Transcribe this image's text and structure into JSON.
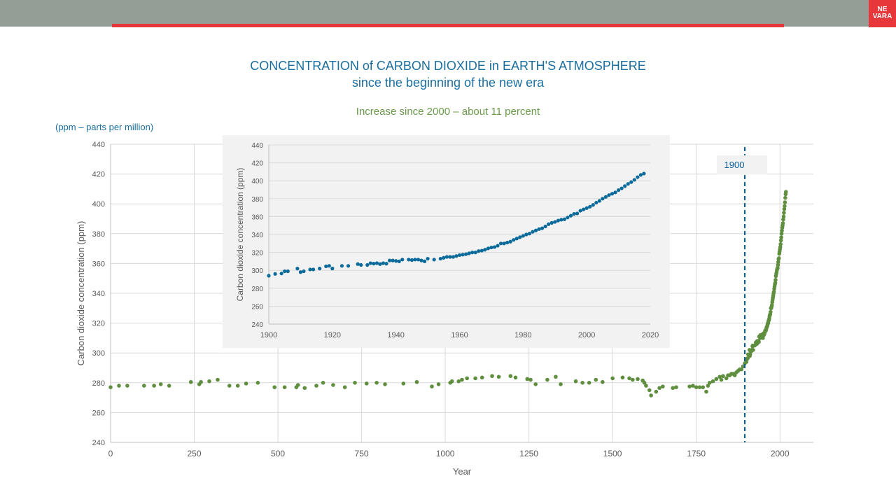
{
  "header": {
    "logo_line1": "NE",
    "logo_line2": "VARA",
    "brand_color": "#e8373a"
  },
  "title_line1": "CONCENTRATION of CARBON DIOXIDE in EARTH'S ATMOSPHERE",
  "title_line2": "since the beginning of the new era",
  "note": "Increase  since 2000 – about 11 percent",
  "units_note": "(ppm – parts per million)",
  "chart_data": [
    {
      "type": "scatter",
      "name": "main",
      "xlabel": "Year",
      "ylabel": "Carbon dioxide concentration  (ppm)",
      "xlim": [
        0,
        2100
      ],
      "ylim": [
        240,
        440
      ],
      "xticks": [
        0,
        250,
        500,
        750,
        1000,
        1250,
        1500,
        1750,
        2000
      ],
      "yticks": [
        240,
        260,
        280,
        300,
        320,
        340,
        360,
        380,
        400,
        420,
        440
      ],
      "grid": true,
      "color": "#5f8f3e",
      "annotation": {
        "label": "1900",
        "x": 1895,
        "color": "#0a5f9a"
      },
      "points": [
        [
          0,
          277
        ],
        [
          25,
          278
        ],
        [
          50,
          278
        ],
        [
          100,
          278
        ],
        [
          130,
          278
        ],
        [
          150,
          279
        ],
        [
          175,
          278
        ],
        [
          240,
          280.5
        ],
        [
          265,
          279
        ],
        [
          270,
          280.5
        ],
        [
          295,
          281
        ],
        [
          320,
          282
        ],
        [
          355,
          278
        ],
        [
          380,
          278
        ],
        [
          405,
          279.5
        ],
        [
          440,
          280
        ],
        [
          490,
          277
        ],
        [
          520,
          277
        ],
        [
          555,
          277
        ],
        [
          560,
          278.5
        ],
        [
          580,
          276.5
        ],
        [
          615,
          278
        ],
        [
          635,
          280
        ],
        [
          665,
          278.5
        ],
        [
          700,
          277
        ],
        [
          730,
          280
        ],
        [
          765,
          279.5
        ],
        [
          795,
          280
        ],
        [
          820,
          279
        ],
        [
          875,
          279.5
        ],
        [
          915,
          280.5
        ],
        [
          960,
          277.5
        ],
        [
          980,
          279
        ],
        [
          1015,
          280
        ],
        [
          1020,
          281
        ],
        [
          1040,
          281
        ],
        [
          1050,
          282
        ],
        [
          1065,
          283
        ],
        [
          1090,
          283
        ],
        [
          1110,
          283.5
        ],
        [
          1140,
          284.5
        ],
        [
          1160,
          284
        ],
        [
          1195,
          284.5
        ],
        [
          1210,
          283.5
        ],
        [
          1245,
          282.5
        ],
        [
          1255,
          282
        ],
        [
          1270,
          279
        ],
        [
          1305,
          282
        ],
        [
          1330,
          284
        ],
        [
          1345,
          279
        ],
        [
          1390,
          281
        ],
        [
          1410,
          280
        ],
        [
          1430,
          280
        ],
        [
          1450,
          282
        ],
        [
          1470,
          280.5
        ],
        [
          1500,
          283
        ],
        [
          1530,
          283.5
        ],
        [
          1550,
          283
        ],
        [
          1560,
          282
        ],
        [
          1575,
          282.5
        ],
        [
          1590,
          281.5
        ],
        [
          1595,
          280
        ],
        [
          1600,
          278
        ],
        [
          1610,
          275
        ],
        [
          1615,
          271.5
        ],
        [
          1630,
          274
        ],
        [
          1640,
          276.5
        ],
        [
          1650,
          277.5
        ],
        [
          1680,
          276.5
        ],
        [
          1690,
          277
        ],
        [
          1730,
          277.5
        ],
        [
          1740,
          278
        ],
        [
          1750,
          277
        ],
        [
          1760,
          277
        ],
        [
          1770,
          277
        ],
        [
          1780,
          274
        ],
        [
          1785,
          278
        ],
        [
          1790,
          280
        ],
        [
          1800,
          281
        ],
        [
          1810,
          282.5
        ],
        [
          1820,
          284
        ],
        [
          1825,
          282
        ],
        [
          1830,
          284.5
        ],
        [
          1840,
          283
        ],
        [
          1845,
          285
        ],
        [
          1850,
          285
        ],
        [
          1855,
          286
        ],
        [
          1860,
          286
        ],
        [
          1865,
          285
        ],
        [
          1870,
          287
        ],
        [
          1875,
          288
        ],
        [
          1880,
          289
        ],
        [
          1885,
          289
        ],
        [
          1890,
          291
        ],
        [
          1895,
          293
        ]
      ]
    },
    {
      "type": "scatter",
      "name": "inset",
      "xlabel": "",
      "ylabel": "Carbon dioxide concentration (ppm)",
      "xlim": [
        1900,
        2020
      ],
      "ylim": [
        240,
        440
      ],
      "xticks": [
        1900,
        1920,
        1940,
        1960,
        1980,
        2000,
        2020
      ],
      "yticks": [
        240,
        260,
        280,
        300,
        320,
        340,
        360,
        380,
        400,
        420,
        440
      ],
      "grid": true,
      "color": "#0a6a9a",
      "points": [
        [
          1900,
          294
        ],
        [
          1902,
          296
        ],
        [
          1904,
          296.5
        ],
        [
          1905,
          299
        ],
        [
          1906,
          299
        ],
        [
          1909,
          302
        ],
        [
          1910,
          298
        ],
        [
          1911,
          299
        ],
        [
          1913,
          301
        ],
        [
          1914,
          301
        ],
        [
          1916,
          302
        ],
        [
          1918,
          304.5
        ],
        [
          1919,
          305
        ],
        [
          1920,
          302
        ],
        [
          1923,
          305
        ],
        [
          1925,
          305
        ],
        [
          1928,
          307
        ],
        [
          1929,
          306
        ],
        [
          1931,
          306
        ],
        [
          1932,
          308
        ],
        [
          1933,
          307.5
        ],
        [
          1934,
          308
        ],
        [
          1935,
          307
        ],
        [
          1936,
          308
        ],
        [
          1937,
          307.5
        ],
        [
          1938,
          311
        ],
        [
          1939,
          311
        ],
        [
          1940,
          310.5
        ],
        [
          1941,
          310
        ],
        [
          1942,
          312
        ],
        [
          1944,
          312
        ],
        [
          1945,
          311.5
        ],
        [
          1946,
          312
        ],
        [
          1947,
          312
        ],
        [
          1948,
          311
        ],
        [
          1949,
          310
        ],
        [
          1950,
          313
        ],
        [
          1952,
          312
        ],
        [
          1954,
          313
        ],
        [
          1955,
          314
        ],
        [
          1956,
          315
        ],
        [
          1957,
          315
        ],
        [
          1958,
          315
        ],
        [
          1959,
          316
        ],
        [
          1960,
          317
        ],
        [
          1961,
          317.5
        ],
        [
          1962,
          318
        ],
        [
          1963,
          319
        ],
        [
          1964,
          320
        ],
        [
          1965,
          320
        ],
        [
          1966,
          321.5
        ],
        [
          1967,
          322
        ],
        [
          1968,
          323
        ],
        [
          1969,
          324.5
        ],
        [
          1970,
          325.5
        ],
        [
          1971,
          326
        ],
        [
          1972,
          327.5
        ],
        [
          1973,
          330
        ],
        [
          1974,
          330
        ],
        [
          1975,
          331
        ],
        [
          1976,
          332
        ],
        [
          1977,
          334
        ],
        [
          1978,
          335.5
        ],
        [
          1979,
          337
        ],
        [
          1980,
          338.5
        ],
        [
          1981,
          340
        ],
        [
          1982,
          341
        ],
        [
          1983,
          343
        ],
        [
          1984,
          344.5
        ],
        [
          1985,
          346
        ],
        [
          1986,
          347
        ],
        [
          1987,
          349
        ],
        [
          1988,
          351.5
        ],
        [
          1989,
          353
        ],
        [
          1990,
          354
        ],
        [
          1991,
          355.5
        ],
        [
          1992,
          356.5
        ],
        [
          1993,
          357
        ],
        [
          1994,
          359
        ],
        [
          1995,
          361
        ],
        [
          1996,
          363
        ],
        [
          1997,
          363.5
        ],
        [
          1998,
          366.5
        ],
        [
          1999,
          368
        ],
        [
          2000,
          369.5
        ],
        [
          2001,
          371
        ],
        [
          2002,
          373
        ],
        [
          2003,
          375.5
        ],
        [
          2004,
          377.5
        ],
        [
          2005,
          380
        ],
        [
          2006,
          382
        ],
        [
          2007,
          384
        ],
        [
          2008,
          385.5
        ],
        [
          2009,
          387
        ],
        [
          2010,
          389.5
        ],
        [
          2011,
          391.5
        ],
        [
          2012,
          394
        ],
        [
          2013,
          396.5
        ],
        [
          2014,
          398.5
        ],
        [
          2015,
          401
        ],
        [
          2016,
          404
        ],
        [
          2017,
          406.5
        ],
        [
          2018,
          408
        ]
      ]
    }
  ]
}
